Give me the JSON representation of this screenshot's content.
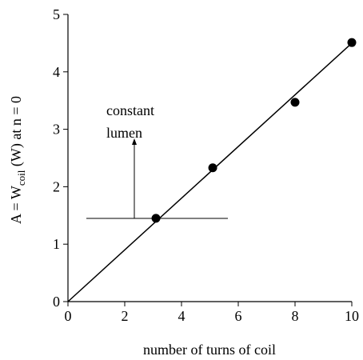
{
  "chart_data": {
    "type": "scatter",
    "xlabel": "number of turns of coil",
    "ylabel_parts": [
      "A = W",
      "coil",
      " (W) at n = 0"
    ],
    "annotation_lines": [
      "constant",
      "lumen"
    ],
    "xlim": [
      0,
      10
    ],
    "xticks": [
      0,
      2,
      4,
      6,
      8,
      10
    ],
    "ylim": [
      0,
      5
    ],
    "yticks": [
      0,
      1,
      2,
      3,
      4,
      5
    ],
    "series": [
      {
        "x": [
          3.1,
          5.1,
          8,
          10
        ],
        "values": [
          1.45,
          2.33,
          3.47,
          4.51
        ],
        "color": "#000000"
      }
    ],
    "fit": {
      "x": [
        0,
        10
      ],
      "values": [
        0,
        4.5
      ],
      "color": "#000000"
    }
  }
}
